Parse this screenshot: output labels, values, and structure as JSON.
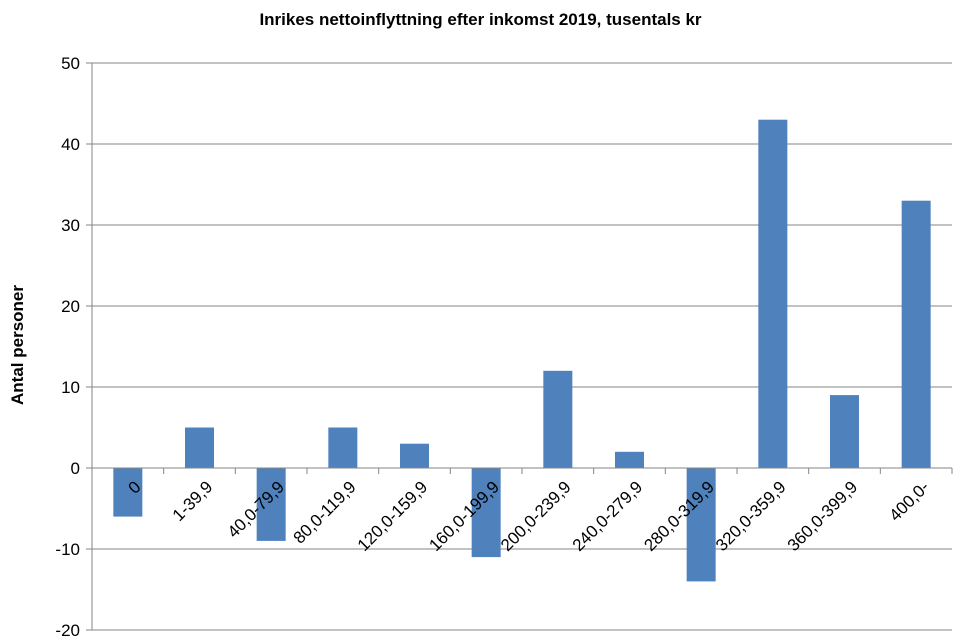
{
  "chart_data": {
    "type": "bar",
    "title": "Inrikes nettoinflyttning efter inkomst 2019, tusentals kr",
    "xlabel": "",
    "ylabel": "Antal personer",
    "categories": [
      "0",
      "1-39,9",
      "40,0-79,9",
      "80,0-119,9",
      "120,0-159,9",
      "160,0-199,9",
      "200,0-239,9",
      "240,0-279,9",
      "280,0-319,9",
      "320,0-359,9",
      "360,0-399,9",
      "400,0-"
    ],
    "values": [
      -6,
      5,
      -9,
      5,
      3,
      -11,
      12,
      2,
      -14,
      43,
      9,
      33
    ],
    "ylim": [
      -20,
      50
    ],
    "yticks": [
      -20,
      -10,
      0,
      10,
      20,
      30,
      40,
      50
    ],
    "grid": true,
    "legend": "none",
    "bar_color": "#4F81BD",
    "grid_color": "#868686"
  }
}
